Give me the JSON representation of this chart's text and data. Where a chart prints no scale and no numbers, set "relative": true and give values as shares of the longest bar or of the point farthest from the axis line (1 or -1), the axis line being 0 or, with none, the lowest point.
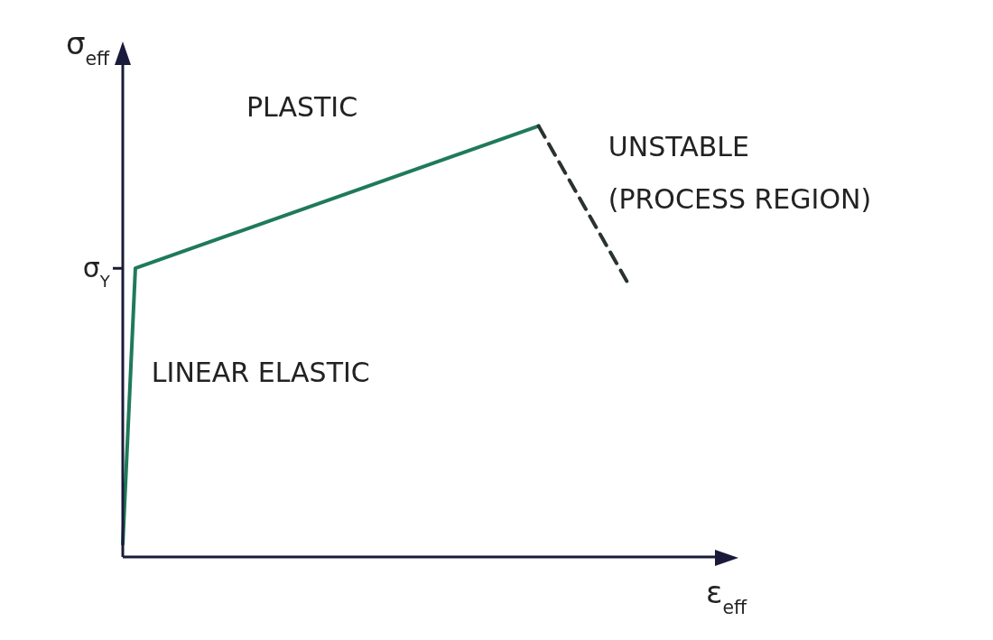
{
  "chart_data": {
    "type": "line",
    "relative": true,
    "xlabel": "ε$_{eff}$",
    "ylabel": "σ$_{eff}$",
    "categories": [
      null,
      null,
      null,
      null,
      null,
      null,
      null,
      null,
      null,
      null,
      null,
      null,
      null,
      null,
      null,
      null,
      null,
      null,
      null,
      null,
      null,
      null,
      null,
      null,
      null,
      null,
      null,
      null,
      null,
      null,
      null,
      null,
      null,
      null,
      null,
      null,
      null,
      null,
      null,
      null,
      null,
      null,
      null,
      null,
      null,
      null,
      null,
      null
    ],
    "series": [
      {
        "color": "#1f7a5a",
        "values": [
          0.03,
          0.67,
          null,
          null,
          null,
          null,
          null,
          null,
          null,
          null,
          null,
          null,
          null,
          null,
          null,
          null,
          null,
          null,
          null,
          null,
          null,
          null,
          null,
          null,
          null,
          null,
          null,
          null,
          null,
          null,
          null,
          null,
          null,
          1,
          null,
          null,
          null,
          null,
          null,
          null,
          null,
          null,
          null,
          null,
          null,
          null,
          null,
          null
        ],
        "line_style": "solid"
      },
      {
        "color": "#2a332e",
        "values": [
          null,
          null,
          null,
          null,
          null,
          null,
          null,
          null,
          null,
          null,
          null,
          null,
          null,
          null,
          null,
          null,
          null,
          null,
          null,
          null,
          null,
          null,
          null,
          null,
          null,
          null,
          null,
          null,
          null,
          null,
          null,
          null,
          null,
          1,
          null,
          null,
          null,
          null,
          null,
          null,
          0.64,
          null,
          null,
          null,
          null,
          null,
          null,
          null
        ],
        "line_style": "dashed"
      }
    ],
    "annotations": [
      "σ$_{Y}$",
      "PLASTIC",
      "UNSTABLE\n(PROCESS REGION)",
      "LINEAR ELASTIC"
    ],
    "marker": "none",
    "grid": false,
    "legend": false
  }
}
